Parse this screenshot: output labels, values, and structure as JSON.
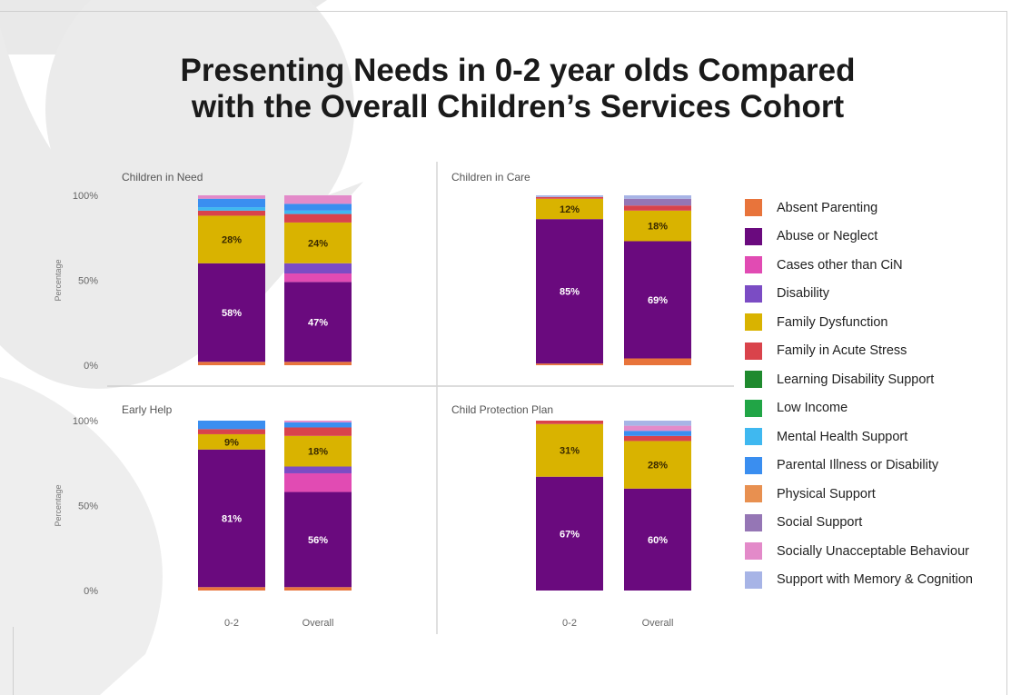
{
  "header": {
    "title_line1": "Presenting Needs in 0-2 year olds Compared",
    "title_line2": "with the Overall Children’s Services Cohort"
  },
  "legend": [
    {
      "name": "Absent Parenting",
      "color": "#e8743b"
    },
    {
      "name": "Abuse or Neglect",
      "color": "#6a0a7e"
    },
    {
      "name": "Cases other than CiN",
      "color": "#e14bb3"
    },
    {
      "name": "Disability",
      "color": "#7b4cc4"
    },
    {
      "name": "Family Dysfunction",
      "color": "#d9b300"
    },
    {
      "name": "Family in Acute Stress",
      "color": "#d9434b"
    },
    {
      "name": "Learning Disability Support",
      "color": "#1f8a2e"
    },
    {
      "name": "Low Income",
      "color": "#21a546"
    },
    {
      "name": "Mental Health Support",
      "color": "#3fb8f0"
    },
    {
      "name": "Parental Illness or Disability",
      "color": "#3a8ef0"
    },
    {
      "name": "Physical Support",
      "color": "#e89050"
    },
    {
      "name": "Social Support",
      "color": "#9576b5"
    },
    {
      "name": "Socially Unacceptable Behaviour",
      "color": "#e38ac9"
    },
    {
      "name": "Support with Memory & Cognition",
      "color": "#a7b4e6"
    }
  ],
  "chart_data": [
    {
      "type": "bar",
      "stacked": true,
      "title": "Children in Need",
      "categories": [
        "0-2",
        "Overall"
      ],
      "ylabel": "Percentage",
      "y_ticks": [
        "0%",
        "50%",
        "100%"
      ],
      "ylim": [
        0,
        100
      ],
      "show_x_labels": false,
      "series": [
        {
          "name": "Absent Parenting",
          "values": [
            2,
            2
          ]
        },
        {
          "name": "Abuse or Neglect",
          "values": [
            58,
            47
          ]
        },
        {
          "name": "Cases other than CiN",
          "values": [
            0,
            5
          ]
        },
        {
          "name": "Disability",
          "values": [
            0,
            6
          ]
        },
        {
          "name": "Family Dysfunction",
          "values": [
            28,
            24
          ]
        },
        {
          "name": "Family in Acute Stress",
          "values": [
            3,
            5
          ]
        },
        {
          "name": "Mental Health Support",
          "values": [
            2,
            2
          ]
        },
        {
          "name": "Parental Illness or Disability",
          "values": [
            5,
            4
          ]
        },
        {
          "name": "Socially Unacceptable Behaviour",
          "values": [
            2,
            5
          ]
        }
      ],
      "data_labels": [
        {
          "series": "Abuse or Neglect",
          "values": [
            "58%",
            "47%"
          ]
        },
        {
          "series": "Family Dysfunction",
          "values": [
            "28%",
            "24%"
          ]
        }
      ]
    },
    {
      "type": "bar",
      "stacked": true,
      "title": "Children in Care",
      "categories": [
        "0-2",
        "Overall"
      ],
      "y_ticks": [],
      "ylim": [
        0,
        100
      ],
      "show_x_labels": false,
      "series": [
        {
          "name": "Absent Parenting",
          "values": [
            1,
            4
          ]
        },
        {
          "name": "Abuse or Neglect",
          "values": [
            85,
            69
          ]
        },
        {
          "name": "Family Dysfunction",
          "values": [
            12,
            18
          ]
        },
        {
          "name": "Family in Acute Stress",
          "values": [
            1,
            3
          ]
        },
        {
          "name": "Social Support",
          "values": [
            0,
            4
          ]
        },
        {
          "name": "Support with Memory & Cognition",
          "values": [
            1,
            2
          ]
        }
      ],
      "data_labels": [
        {
          "series": "Abuse or Neglect",
          "values": [
            "85%",
            "69%"
          ]
        },
        {
          "series": "Family Dysfunction",
          "values": [
            "12%",
            "18%"
          ]
        }
      ]
    },
    {
      "type": "bar",
      "stacked": true,
      "title": "Early Help",
      "categories": [
        "0-2",
        "Overall"
      ],
      "ylabel": "Percentage",
      "y_ticks": [
        "0%",
        "50%",
        "100%"
      ],
      "ylim": [
        0,
        100
      ],
      "show_x_labels": true,
      "series": [
        {
          "name": "Absent Parenting",
          "values": [
            2,
            2
          ]
        },
        {
          "name": "Abuse or Neglect",
          "values": [
            81,
            56
          ]
        },
        {
          "name": "Cases other than CiN",
          "values": [
            0,
            11
          ]
        },
        {
          "name": "Disability",
          "values": [
            0,
            4
          ]
        },
        {
          "name": "Family Dysfunction",
          "values": [
            9,
            18
          ]
        },
        {
          "name": "Family in Acute Stress",
          "values": [
            3,
            5
          ]
        },
        {
          "name": "Parental Illness or Disability",
          "values": [
            5,
            3
          ]
        },
        {
          "name": "Socially Unacceptable Behaviour",
          "values": [
            0,
            1
          ]
        }
      ],
      "data_labels": [
        {
          "series": "Abuse or Neglect",
          "values": [
            "81%",
            "56%"
          ]
        },
        {
          "series": "Family Dysfunction",
          "values": [
            "9%",
            "18%"
          ]
        }
      ]
    },
    {
      "type": "bar",
      "stacked": true,
      "title": "Child Protection Plan",
      "categories": [
        "0-2",
        "Overall"
      ],
      "y_ticks": [],
      "ylim": [
        0,
        100
      ],
      "show_x_labels": true,
      "series": [
        {
          "name": "Abuse or Neglect",
          "values": [
            67,
            60
          ]
        },
        {
          "name": "Family Dysfunction",
          "values": [
            31,
            28
          ]
        },
        {
          "name": "Family in Acute Stress",
          "values": [
            2,
            3
          ]
        },
        {
          "name": "Parental Illness or Disability",
          "values": [
            0,
            3
          ]
        },
        {
          "name": "Socially Unacceptable Behaviour",
          "values": [
            0,
            3
          ]
        },
        {
          "name": "Support with Memory & Cognition",
          "values": [
            0,
            3
          ]
        }
      ],
      "data_labels": [
        {
          "series": "Abuse or Neglect",
          "values": [
            "67%",
            "60%"
          ]
        },
        {
          "series": "Family Dysfunction",
          "values": [
            "31%",
            "28%"
          ]
        }
      ]
    }
  ]
}
